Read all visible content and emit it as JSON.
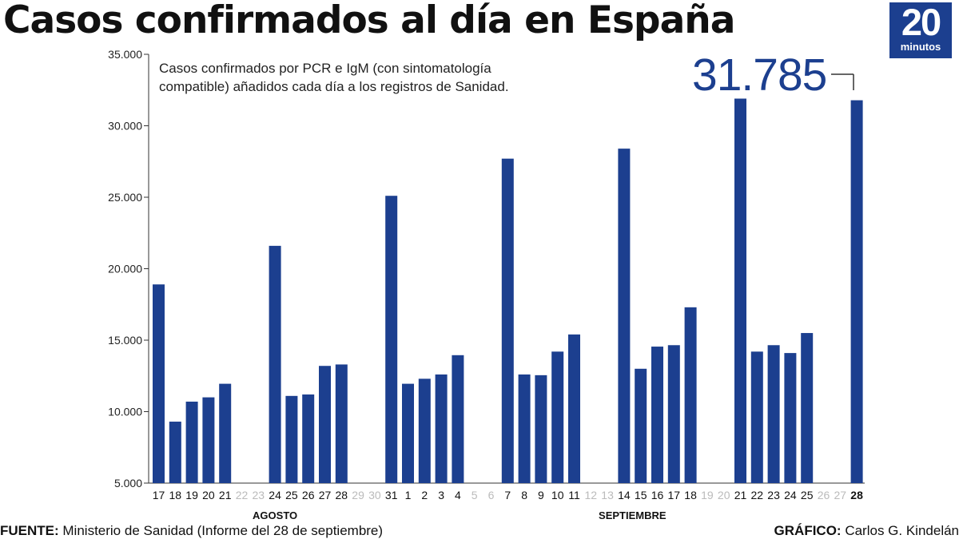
{
  "header": {
    "title": "Casos confirmados al día en España",
    "logo_number": "20",
    "logo_word": "minutos"
  },
  "annotation": {
    "note_line1": "Casos confirmados por PCR e IgM (con sintomatología",
    "note_line2": "compatible) añadidos cada día a los registros de Sanidad.",
    "highlight_value": "31.785"
  },
  "footer": {
    "source_label": "FUENTE:",
    "source_text": " Ministerio de Sanidad (Informe del 28 de septiembre)",
    "credit_label": "GRÁFICO:",
    "credit_text": " Carlos G. Kindelán"
  },
  "colors": {
    "bar": "#1c3f8f",
    "empty_label": "#bbbbbb"
  },
  "chart_data": {
    "type": "bar",
    "title": "Casos confirmados al día en España",
    "ylim": [
      5000,
      35000
    ],
    "yticks": [
      {
        "value": 5000,
        "label": "5.000"
      },
      {
        "value": 10000,
        "label": "10.000"
      },
      {
        "value": 15000,
        "label": "15.000"
      },
      {
        "value": 20000,
        "label": "20.000"
      },
      {
        "value": 25000,
        "label": "25.000"
      },
      {
        "value": 30000,
        "label": "30.000"
      },
      {
        "value": 35000,
        "label": "35.000"
      }
    ],
    "months": [
      {
        "label": "AGOSTO",
        "from": 0,
        "to": 14
      },
      {
        "label": "SEPTIEMBRE",
        "from": 15,
        "to": 42
      }
    ],
    "categories": [
      "17",
      "18",
      "19",
      "20",
      "21",
      "22",
      "23",
      "24",
      "25",
      "26",
      "27",
      "28",
      "29",
      "30",
      "31",
      "1",
      "2",
      "3",
      "4",
      "5",
      "6",
      "7",
      "8",
      "9",
      "10",
      "11",
      "12",
      "13",
      "14",
      "15",
      "16",
      "17",
      "18",
      "19",
      "20",
      "21",
      "22",
      "23",
      "24",
      "25",
      "26",
      "27",
      "28"
    ],
    "values": [
      18900,
      9300,
      10700,
      11000,
      11950,
      null,
      null,
      21600,
      11100,
      11200,
      13200,
      13300,
      null,
      null,
      25100,
      11950,
      12300,
      12600,
      13950,
      null,
      null,
      27700,
      12600,
      12550,
      14200,
      15400,
      null,
      null,
      28400,
      13000,
      14550,
      14650,
      17300,
      null,
      null,
      31900,
      14200,
      14650,
      14100,
      15500,
      null,
      null,
      31785
    ],
    "highlight_index": 42
  }
}
